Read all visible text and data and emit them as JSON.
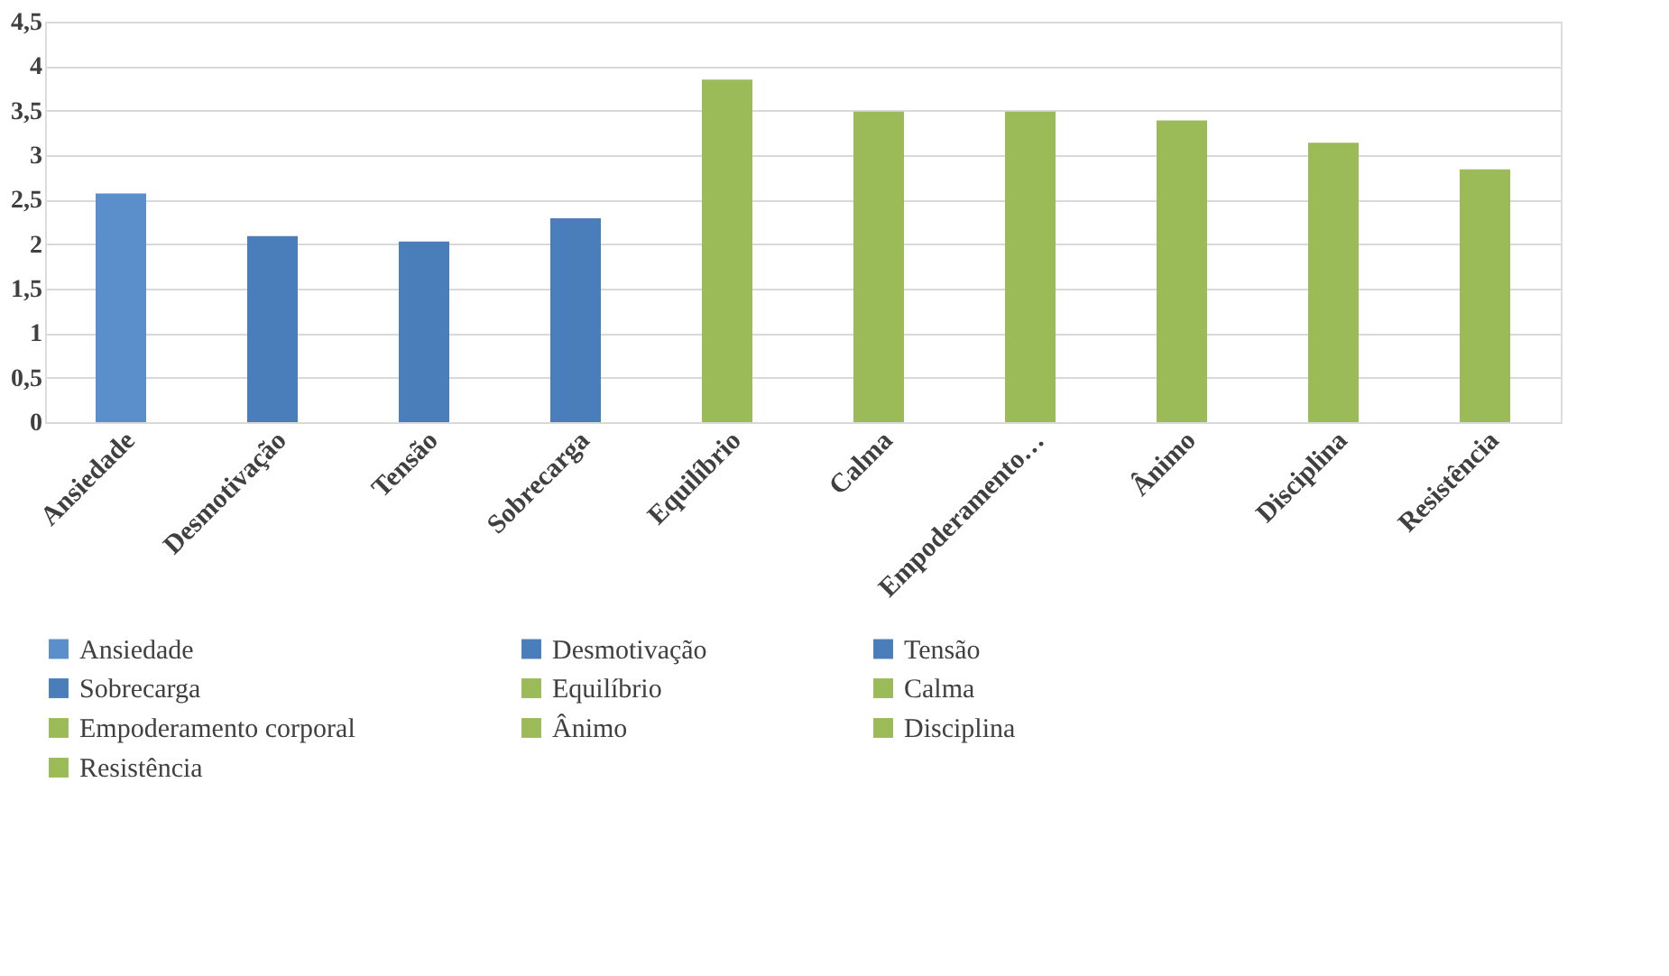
{
  "chart_data": {
    "type": "bar",
    "categories": [
      "Ansiedade",
      "Desmotivação",
      "Tensão",
      "Sobrecarga",
      "Equilíbrio",
      "Calma",
      "Empoderamento…",
      "Ânimo",
      "Disciplina",
      "Resistência"
    ],
    "series": [
      {
        "name": "Ansiedade",
        "color": "#5b8fcb",
        "values": [
          2.57,
          null,
          null,
          null,
          null,
          null,
          null,
          null,
          null,
          null
        ]
      },
      {
        "name": "Desmotivação",
        "color": "#4a7ebb",
        "values": [
          null,
          2.09,
          null,
          null,
          null,
          null,
          null,
          null,
          null,
          null
        ]
      },
      {
        "name": "Tensão",
        "color": "#4a7ebb",
        "values": [
          null,
          null,
          2.03,
          null,
          null,
          null,
          null,
          null,
          null,
          null
        ]
      },
      {
        "name": "Sobrecarga",
        "color": "#4a7ebb",
        "values": [
          null,
          null,
          null,
          2.29,
          null,
          null,
          null,
          null,
          null,
          null
        ]
      },
      {
        "name": "Equilíbrio",
        "color": "#9bbb59",
        "values": [
          null,
          null,
          null,
          null,
          3.85,
          null,
          null,
          null,
          null,
          null
        ]
      },
      {
        "name": "Calma",
        "color": "#9bbb59",
        "values": [
          null,
          null,
          null,
          null,
          null,
          3.49,
          null,
          null,
          null,
          null
        ]
      },
      {
        "name": "Empoderamento corporal",
        "color": "#9bbb59",
        "values": [
          null,
          null,
          null,
          null,
          null,
          null,
          3.49,
          null,
          null,
          null
        ]
      },
      {
        "name": "Ânimo",
        "color": "#9bbb59",
        "values": [
          null,
          null,
          null,
          null,
          null,
          null,
          null,
          3.39,
          null,
          null
        ]
      },
      {
        "name": "Disciplina",
        "color": "#9bbb59",
        "values": [
          null,
          null,
          null,
          null,
          null,
          null,
          null,
          null,
          3.14,
          null
        ]
      },
      {
        "name": "Resistência",
        "color": "#9bbb59",
        "values": [
          null,
          null,
          null,
          null,
          null,
          null,
          null,
          null,
          null,
          2.84
        ]
      }
    ],
    "ylim": [
      0,
      4.5
    ],
    "yticks": [
      0,
      {
        "value": 0.5,
        "label": "0,5"
      },
      1,
      {
        "value": 1.5,
        "label": "1,5"
      },
      2,
      {
        "value": 2.5,
        "label": "2,5"
      },
      3,
      {
        "value": 3.5,
        "label": "3,5"
      },
      4,
      {
        "value": 4.5,
        "label": "4,5"
      }
    ],
    "grid": "y",
    "legend": "bottom"
  }
}
